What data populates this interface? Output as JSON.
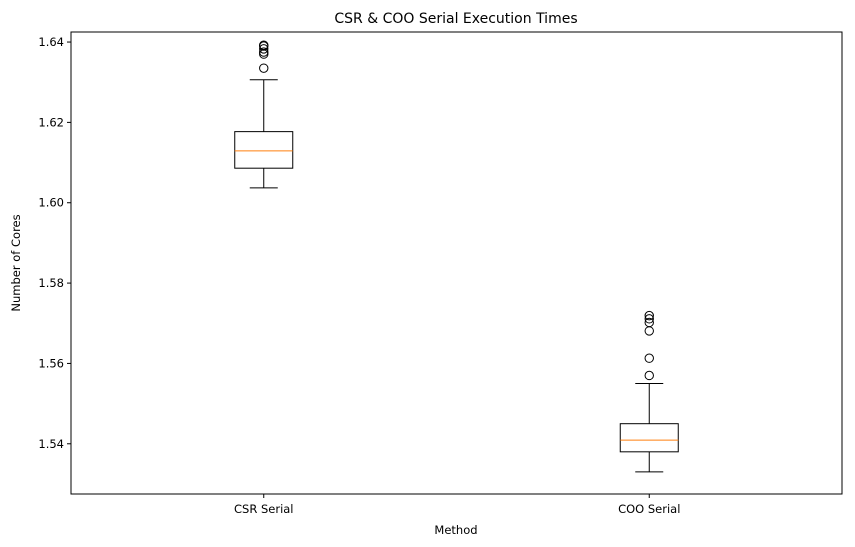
{
  "chart_data": {
    "type": "box",
    "title": "CSR & COO Serial Execution Times",
    "xlabel": "Method",
    "ylabel": "Number of Cores",
    "categories": [
      "CSR Serial",
      "COO Serial"
    ],
    "yticks": [
      "1.54",
      "1.56",
      "1.58",
      "1.60",
      "1.62",
      "1.64"
    ],
    "ylim": [
      1.5275,
      1.6425
    ],
    "grid": false,
    "boxes": [
      {
        "name": "CSR Serial",
        "whisker_low": 1.6037,
        "q1": 1.6086,
        "median": 1.6129,
        "q3": 1.6177,
        "whisker_high": 1.6306,
        "outliers": [
          1.6335,
          1.637,
          1.6375,
          1.6383,
          1.639,
          1.6392
        ]
      },
      {
        "name": "COO Serial",
        "whisker_low": 1.533,
        "q1": 1.538,
        "median": 1.5409,
        "q3": 1.545,
        "whisker_high": 1.555,
        "outliers": [
          1.557,
          1.5613,
          1.5681,
          1.5702,
          1.5711,
          1.5719
        ]
      }
    ],
    "colors": {
      "box": "#000000",
      "median": "#ff7f0e",
      "outlier": "#000000"
    }
  }
}
